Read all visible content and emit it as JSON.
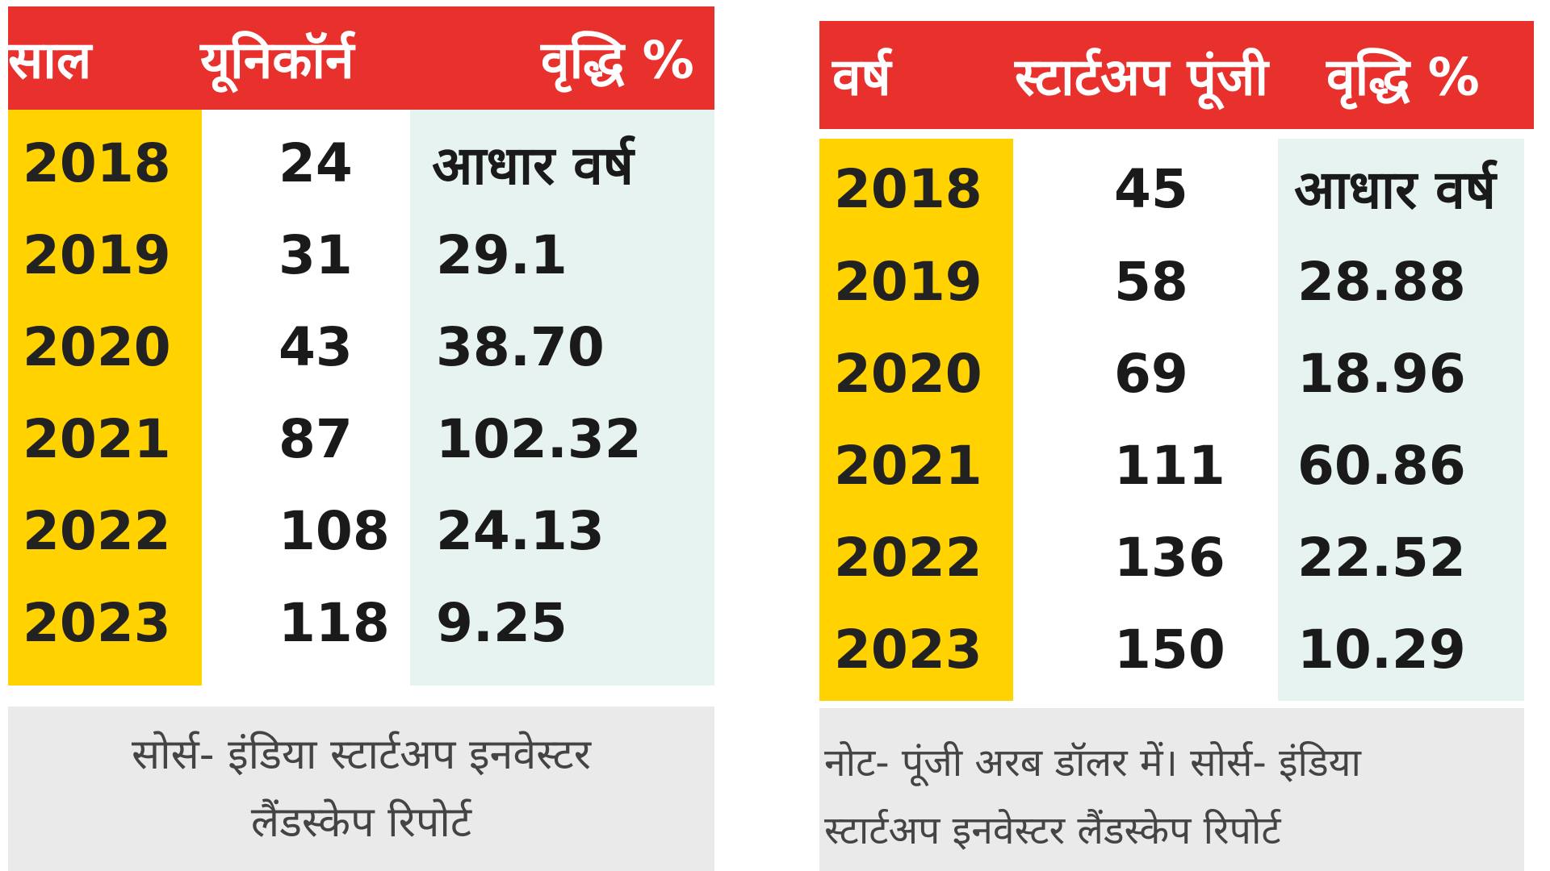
{
  "chart_data": [
    {
      "type": "table",
      "columns": [
        "साल",
        "यूनिकॉर्न",
        "वृद्धि %"
      ],
      "rows": [
        {
          "year": "2018",
          "count": "24",
          "growth": "आधार वर्ष"
        },
        {
          "year": "2019",
          "count": "31",
          "growth": "29.1"
        },
        {
          "year": "2020",
          "count": "43",
          "growth": "38.70"
        },
        {
          "year": "2021",
          "count": "87",
          "growth": "102.32"
        },
        {
          "year": "2022",
          "count": "108",
          "growth": "24.13"
        },
        {
          "year": "2023",
          "count": "118",
          "growth": "9.25"
        }
      ],
      "note_lines": [
        "सोर्स- इंडिया स्टार्टअप इनवेस्टर",
        "लैंडस्केप रिपोर्ट"
      ]
    },
    {
      "type": "table",
      "columns": [
        "वर्ष",
        "स्टार्टअप पूंजी",
        "वृद्धि %"
      ],
      "rows": [
        {
          "year": "2018",
          "count": "45",
          "growth": "आधार वर्ष"
        },
        {
          "year": "2019",
          "count": "58",
          "growth": "28.88"
        },
        {
          "year": "2020",
          "count": "69",
          "growth": "18.96"
        },
        {
          "year": "2021",
          "count": "111",
          "growth": "60.86"
        },
        {
          "year": "2022",
          "count": "136",
          "growth": "22.52"
        },
        {
          "year": "2023",
          "count": "150",
          "growth": "10.29"
        }
      ],
      "note_lines": [
        "नोट- पूंजी अरब डॉलर में। सोर्स- इंडिया",
        "स्टार्टअप इनवेस्टर लैंडस्केप रिपोर्ट"
      ]
    }
  ],
  "colors": {
    "header": "#e8302d",
    "year_column": "#ffd200",
    "growth_column": "#e6f3f1",
    "note_background": "#eaeaea"
  }
}
